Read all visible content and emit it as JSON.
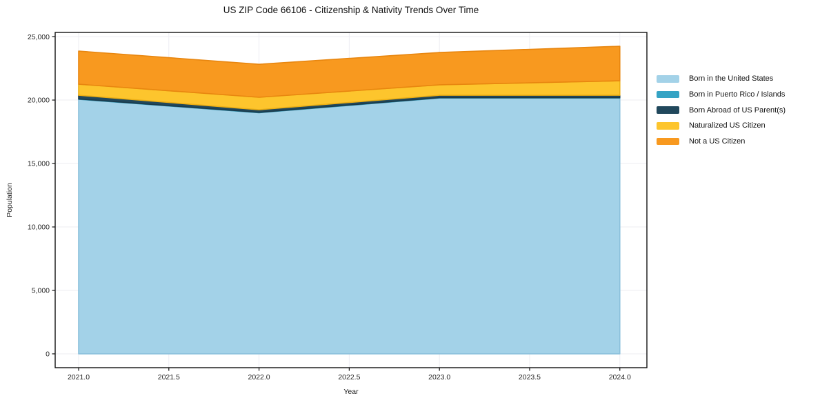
{
  "chart_data": {
    "type": "area",
    "stacked": true,
    "title": "US ZIP Code 66106 - Citizenship & Nativity Trends Over Time",
    "xlabel": "Year",
    "ylabel": "Population",
    "x": [
      2021,
      2022,
      2023,
      2024
    ],
    "series": [
      {
        "name": "Born in the United States",
        "values": [
          20060,
          19000,
          20160,
          20160
        ],
        "color": "#A3D2E8",
        "edge": "#8BC0DB"
      },
      {
        "name": "Born in Puerto Rico / Islands",
        "values": [
          30,
          30,
          30,
          30
        ],
        "color": "#35A3C4",
        "edge": "#2C8CA9"
      },
      {
        "name": "Born Abroad of US Parent(s)",
        "values": [
          290,
          210,
          190,
          190
        ],
        "color": "#21485C",
        "edge": "#1A3A4B"
      },
      {
        "name": "Naturalized US Citizen",
        "values": [
          870,
          980,
          820,
          1140
        ],
        "color": "#FDC52D",
        "edge": "#EDAF14"
      },
      {
        "name": "Not a US Citizen",
        "values": [
          2610,
          2600,
          2550,
          2720
        ],
        "color": "#F8991F",
        "edge": "#E8860F"
      }
    ],
    "x_ticks": [
      {
        "v": 2021.0,
        "label": "2021.0"
      },
      {
        "v": 2021.5,
        "label": "2021.5"
      },
      {
        "v": 2022.0,
        "label": "2022.0"
      },
      {
        "v": 2022.5,
        "label": "2022.5"
      },
      {
        "v": 2023.0,
        "label": "2023.0"
      },
      {
        "v": 2023.5,
        "label": "2023.5"
      },
      {
        "v": 2024.0,
        "label": "2024.0"
      }
    ],
    "y_ticks": [
      {
        "v": 0,
        "label": "0"
      },
      {
        "v": 5000,
        "label": "5,000"
      },
      {
        "v": 10000,
        "label": "10,000"
      },
      {
        "v": 15000,
        "label": "15,000"
      },
      {
        "v": 20000,
        "label": "20,000"
      },
      {
        "v": 25000,
        "label": "25,000"
      }
    ],
    "xlim": [
      2020.87,
      2024.15
    ],
    "ylim": [
      -1090,
      25330
    ],
    "grid": true,
    "legend_position": "right"
  }
}
